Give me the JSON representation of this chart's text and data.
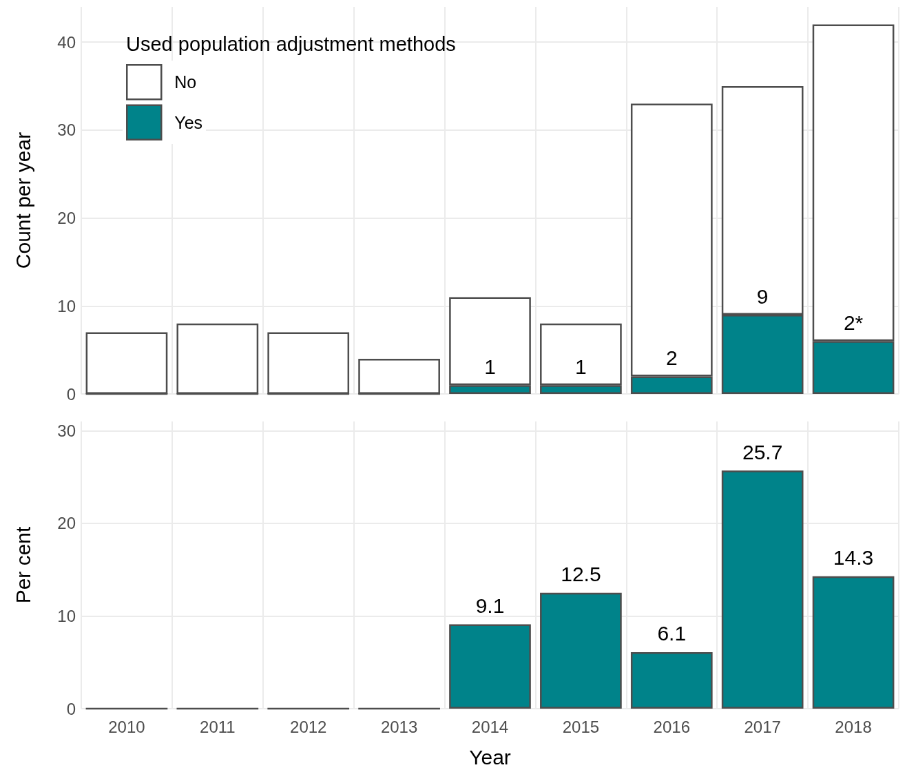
{
  "chart_data": [
    {
      "type": "bar",
      "stacked": true,
      "ylabel": "Count per year",
      "legend_title": "Used population adjustment methods",
      "legend": "top left",
      "grid": true,
      "tick_labels": "y",
      "categories": [
        "2010",
        "2011",
        "2012",
        "2013",
        "2014",
        "2015",
        "2016",
        "2017",
        "2018"
      ],
      "series": [
        {
          "name": "Yes",
          "color": "#00838a",
          "values": [
            0,
            0,
            0,
            0,
            1,
            1,
            2,
            9,
            6
          ],
          "value_labels": [
            null,
            null,
            null,
            null,
            "1",
            "1",
            "2",
            "9",
            null
          ]
        },
        {
          "name": "No",
          "color": "#ffffff",
          "values": [
            7,
            8,
            7,
            4,
            10,
            7,
            31,
            26,
            36
          ]
        }
      ],
      "annotations": [
        {
          "text": "2*",
          "x": "2018",
          "y": 6
        }
      ],
      "ylim": [
        0,
        44
      ],
      "yticks": [
        0,
        10,
        20,
        30,
        40
      ]
    },
    {
      "type": "bar",
      "ylabel": "Per cent",
      "xlabel": "Year",
      "grid": true,
      "legend": false,
      "categories": [
        "2010",
        "2011",
        "2012",
        "2013",
        "2014",
        "2015",
        "2016",
        "2017",
        "2018"
      ],
      "series": [
        {
          "color": "#00838a",
          "values": [
            0,
            0,
            0,
            0,
            9.1,
            12.5,
            6.1,
            25.7,
            14.3
          ],
          "value_labels": [
            null,
            null,
            null,
            null,
            "9.1",
            "12.5",
            "6.1",
            "25.7",
            "14.3"
          ]
        }
      ],
      "ylim": [
        0,
        31
      ],
      "yticks": [
        0,
        10,
        20,
        30
      ]
    }
  ]
}
